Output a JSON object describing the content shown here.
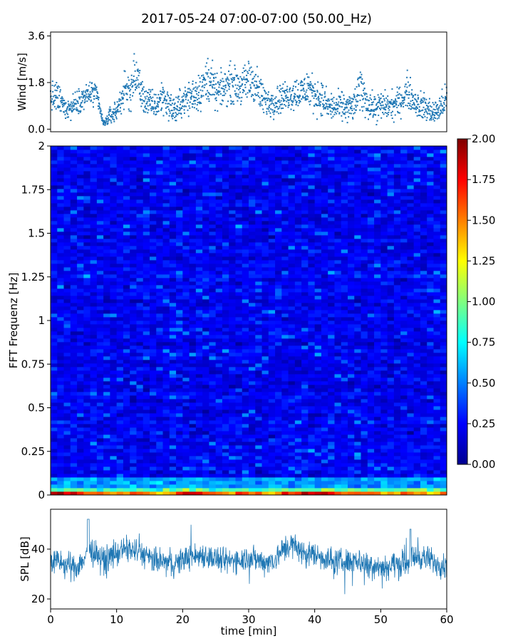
{
  "title": "2017-05-24 07:00-07:00 (50.00_Hz)",
  "colors": {
    "series": "#1f77b4",
    "colormap": "jet"
  },
  "chart_data": [
    {
      "panel": "wind",
      "type": "scatter",
      "ylabel": "Wind [m/s]",
      "xlim": [
        0,
        60
      ],
      "ylim": [
        -0.1,
        3.75
      ],
      "yticks": [
        {
          "v": 0.0,
          "label": "0.0"
        },
        {
          "v": 1.8,
          "label": "1.8"
        },
        {
          "v": 3.6,
          "label": "3.6"
        }
      ],
      "x": [
        0,
        1,
        2,
        3,
        4,
        5,
        6,
        7,
        8,
        9,
        10,
        11,
        12,
        13,
        14,
        15,
        16,
        17,
        18,
        19,
        20,
        21,
        22,
        23,
        24,
        25,
        26,
        27,
        28,
        29,
        30,
        31,
        32,
        33,
        34,
        35,
        36,
        37,
        38,
        39,
        40,
        41,
        42,
        43,
        44,
        45,
        46,
        47,
        48,
        49,
        50,
        51,
        52,
        53,
        54,
        55,
        56,
        57,
        58,
        59,
        60
      ],
      "y": [
        1.2,
        1.2,
        0.9,
        0.8,
        1.1,
        1.2,
        1.4,
        1.3,
        0.2,
        0.5,
        0.7,
        1.4,
        1.5,
        2.1,
        1.2,
        1.0,
        0.9,
        1.3,
        0.9,
        0.7,
        1.1,
        1.2,
        1.4,
        1.6,
        2.0,
        1.4,
        1.5,
        1.8,
        1.7,
        1.6,
        1.9,
        1.8,
        1.2,
        1.0,
        1.1,
        1.2,
        1.3,
        1.4,
        1.4,
        1.6,
        1.3,
        1.2,
        0.9,
        0.8,
        0.9,
        0.8,
        0.9,
        1.6,
        1.0,
        0.8,
        0.9,
        0.9,
        0.9,
        1.1,
        1.5,
        1.1,
        0.9,
        0.8,
        0.6,
        0.8,
        1.2
      ],
      "spread": [
        0.5,
        0.6,
        0.4,
        0.4,
        0.4,
        0.4,
        0.5,
        0.4,
        0.1,
        0.3,
        0.4,
        0.6,
        0.7,
        0.9,
        0.5,
        0.5,
        0.5,
        0.6,
        0.5,
        0.5,
        0.5,
        0.6,
        0.7,
        0.7,
        0.9,
        0.6,
        0.6,
        0.7,
        0.6,
        0.6,
        0.8,
        0.7,
        0.6,
        0.5,
        0.5,
        0.5,
        0.5,
        0.6,
        0.6,
        0.7,
        0.6,
        0.6,
        0.5,
        0.5,
        0.5,
        0.5,
        0.5,
        0.8,
        0.5,
        0.5,
        0.5,
        0.5,
        0.5,
        0.5,
        0.6,
        0.5,
        0.5,
        0.5,
        0.4,
        0.5,
        0.5
      ]
    },
    {
      "panel": "spectrogram",
      "type": "heatmap",
      "ylabel": "FFT Frequenz [Hz]",
      "xlim": [
        0,
        60
      ],
      "ylim": [
        0,
        2
      ],
      "yticks": [
        {
          "v": 0,
          "label": "0"
        },
        {
          "v": 0.25,
          "label": "0.25"
        },
        {
          "v": 0.5,
          "label": "0.5"
        },
        {
          "v": 0.75,
          "label": "0.75"
        },
        {
          "v": 1,
          "label": "1"
        },
        {
          "v": 1.25,
          "label": "1.25"
        },
        {
          "v": 1.5,
          "label": "1.5"
        },
        {
          "v": 1.75,
          "label": "1.75"
        },
        {
          "v": 2,
          "label": "2"
        }
      ],
      "low_freq_level": [
        [
          1.9,
          1.9,
          1.8,
          1.9,
          1.6,
          1.5,
          1.5,
          1.6,
          1.4,
          1.4,
          1.4,
          1.5,
          1.6,
          1.6,
          1.5,
          1.5,
          1.4,
          1.4,
          1.5,
          1.6,
          1.8,
          1.8,
          1.7,
          1.7,
          1.6,
          1.6,
          1.5,
          1.5,
          1.6,
          1.6,
          1.6,
          1.5,
          1.5,
          1.4,
          1.6,
          1.7,
          1.6,
          1.7,
          1.8,
          1.9,
          1.8,
          1.8,
          1.7,
          1.6,
          1.5,
          1.5,
          1.6,
          1.6,
          1.6,
          1.5,
          1.4,
          1.4,
          1.5,
          1.5,
          1.5,
          1.4,
          1.4,
          1.3,
          1.4,
          1.5
        ],
        [
          1.0,
          1.0,
          1.0,
          1.0,
          0.9,
          0.9,
          0.9,
          0.9,
          0.8,
          0.8,
          0.8,
          0.8,
          0.9,
          0.9,
          0.9,
          0.9,
          0.8,
          0.9,
          0.9,
          0.9,
          1.0,
          1.0,
          1.0,
          1.0,
          0.9,
          0.9,
          0.9,
          0.9,
          0.9,
          0.9,
          0.9,
          0.9,
          0.9,
          0.9,
          0.9,
          1.0,
          1.0,
          1.0,
          1.0,
          1.0,
          1.0,
          1.0,
          1.0,
          0.9,
          0.9,
          0.9,
          0.9,
          0.9,
          0.9,
          0.9,
          0.8,
          0.8,
          0.9,
          0.9,
          1.0,
          1.0,
          1.0,
          0.9,
          0.9,
          0.9
        ]
      ],
      "colorbar": {
        "min": 0,
        "max": 2,
        "ticks": [
          {
            "v": 0,
            "label": "0.00"
          },
          {
            "v": 0.25,
            "label": "0.25"
          },
          {
            "v": 0.5,
            "label": "0.50"
          },
          {
            "v": 0.75,
            "label": "0.75"
          },
          {
            "v": 1,
            "label": "1.00"
          },
          {
            "v": 1.25,
            "label": "1.25"
          },
          {
            "v": 1.5,
            "label": "1.50"
          },
          {
            "v": 1.75,
            "label": "1.75"
          },
          {
            "v": 2,
            "label": "2.00"
          }
        ]
      }
    },
    {
      "panel": "spl",
      "type": "line",
      "ylabel": "SPL [dB]",
      "xlabel": "time [min]",
      "xlim": [
        0,
        60
      ],
      "ylim": [
        16,
        56
      ],
      "yticks": [
        {
          "v": 20,
          "label": "20"
        },
        {
          "v": 40,
          "label": "40"
        }
      ],
      "xticks": [
        {
          "v": 0,
          "label": "0"
        },
        {
          "v": 10,
          "label": "10"
        },
        {
          "v": 20,
          "label": "20"
        },
        {
          "v": 30,
          "label": "30"
        },
        {
          "v": 40,
          "label": "40"
        },
        {
          "v": 50,
          "label": "50"
        },
        {
          "v": 60,
          "label": "60"
        }
      ],
      "x": [
        0,
        1,
        2,
        3,
        4,
        5,
        6,
        7,
        8,
        9,
        10,
        11,
        12,
        13,
        14,
        15,
        16,
        17,
        18,
        19,
        20,
        21,
        22,
        23,
        24,
        25,
        26,
        27,
        28,
        29,
        30,
        31,
        32,
        33,
        34,
        35,
        36,
        37,
        38,
        39,
        40,
        41,
        42,
        43,
        44,
        45,
        46,
        47,
        48,
        49,
        50,
        51,
        52,
        53,
        54,
        55,
        56,
        57,
        58,
        59,
        60
      ],
      "y": [
        35,
        35,
        34,
        33,
        33,
        36,
        39,
        37,
        36,
        37,
        38,
        40,
        40,
        39,
        38,
        36,
        35,
        35,
        34,
        34,
        36,
        37,
        37,
        38,
        37,
        36,
        35,
        35,
        36,
        36,
        37,
        36,
        35,
        35,
        36,
        39,
        42,
        41,
        39,
        38,
        38,
        37,
        36,
        35,
        35,
        35,
        36,
        35,
        34,
        34,
        33,
        33,
        34,
        34,
        35,
        37,
        37,
        36,
        35,
        34,
        33
      ],
      "band": [
        7,
        7,
        7,
        7,
        7,
        7,
        7,
        7,
        7,
        7,
        7,
        7,
        7,
        7,
        7,
        7,
        7,
        7,
        7,
        7,
        7,
        7,
        7,
        7,
        7,
        7,
        7,
        7,
        7,
        7,
        7,
        7,
        7,
        7,
        7,
        7,
        8,
        7,
        7,
        7,
        7,
        7,
        7,
        7,
        7,
        7,
        7,
        7,
        7,
        7,
        7,
        7,
        7,
        7,
        7,
        7,
        7,
        7,
        7,
        7,
        7
      ]
    }
  ]
}
